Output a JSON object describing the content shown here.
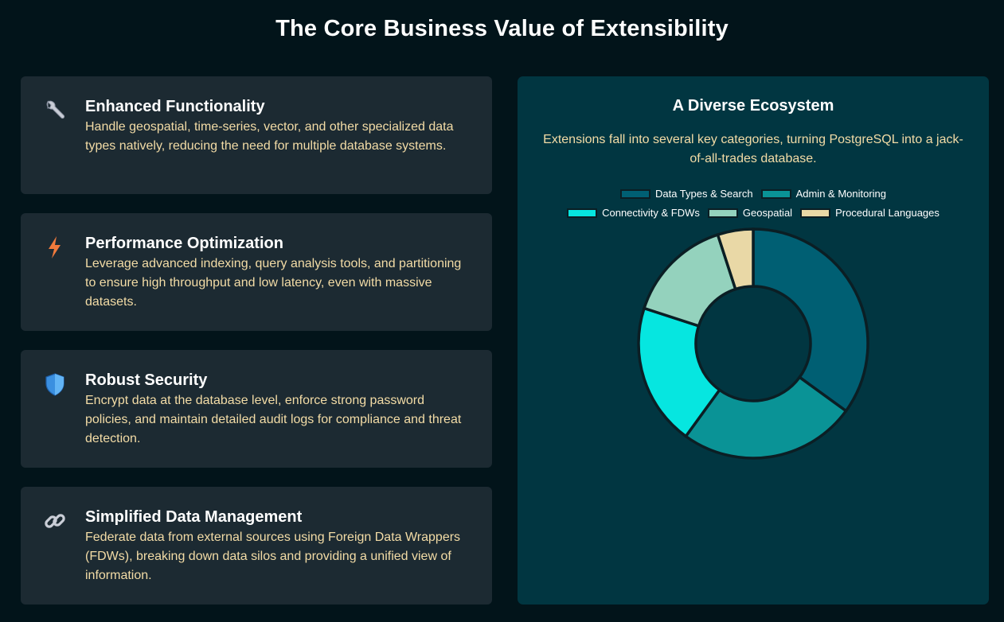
{
  "page": {
    "title": "The Core Business Value of Extensibility"
  },
  "cards": [
    {
      "title": "Enhanced Functionality",
      "text": "Handle geospatial, time-series, vector, and other specialized data types natively, reducing the need for multiple database systems.",
      "icon": "wrench-icon"
    },
    {
      "title": "Performance Optimization",
      "text": "Leverage advanced indexing, query analysis tools, and partitioning to ensure high throughput and low latency, even with massive datasets.",
      "icon": "lightning-icon"
    },
    {
      "title": "Robust Security",
      "text": "Encrypt data at the database level, enforce strong password policies, and maintain detailed audit logs for compliance and threat detection.",
      "icon": "shield-icon"
    },
    {
      "title": "Simplified Data Management",
      "text": "Federate data from external sources using Foreign Data Wrappers (FDWs), breaking down data silos and providing a unified view of information.",
      "icon": "link-icon"
    }
  ],
  "panel": {
    "title": "A Diverse Ecosystem",
    "description": "Extensions fall into several key categories, turning PostgreSQL into a jack-of-all-trades database."
  },
  "chart_data": {
    "type": "pie",
    "variant": "doughnut",
    "categories": [
      "Data Types & Search",
      "Admin & Monitoring",
      "Connectivity & FDWs",
      "Geospatial",
      "Procedural Languages"
    ],
    "values": [
      35,
      25,
      20,
      15,
      5
    ],
    "colors": [
      "#005f73",
      "#0a9396",
      "#06e6e0",
      "#94d2bd",
      "#e9d8a6"
    ],
    "legend_position": "top"
  }
}
